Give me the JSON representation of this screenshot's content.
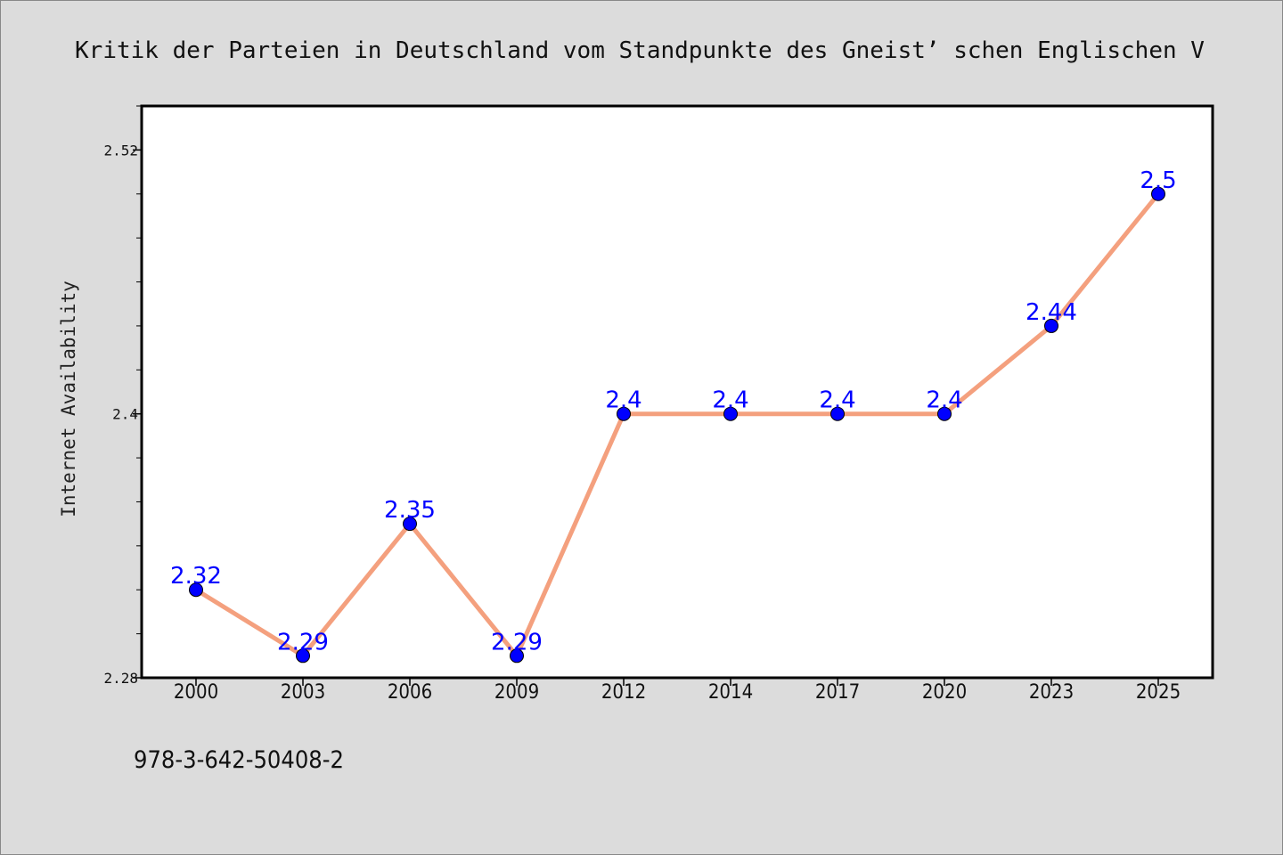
{
  "chart_data": {
    "type": "line",
    "title": "Kritik der Parteien in Deutschland vom Standpunkte des Gneist’ schen Englischen V",
    "ylabel": "Internet Availability",
    "xlabel": "",
    "categories": [
      "2000",
      "2003",
      "2006",
      "2009",
      "2012",
      "2014",
      "2017",
      "2020",
      "2023",
      "2025"
    ],
    "series": [
      {
        "values": [
          2.32,
          2.29,
          2.35,
          2.29,
          2.4,
          2.4,
          2.4,
          2.4,
          2.44,
          2.5
        ],
        "data_labels": [
          "2.32",
          "2.29",
          "2.35",
          "2.29",
          "2.4",
          "2.4",
          "2.4",
          "2.4",
          "2.44",
          "2.5"
        ],
        "line_color": "#f4a07e",
        "marker_color": "#0000ff"
      }
    ],
    "ylim": [
      2.28,
      2.54
    ],
    "yticks": [
      2.28,
      2.4,
      2.52
    ],
    "ytick_labels": [
      "2.28",
      "2.4",
      "2.52"
    ],
    "grid": false,
    "legend": "none"
  },
  "footer_text": "978-3-642-50408-2",
  "colors": {
    "background": "#dcdcdc",
    "plot_background": "#ffffff",
    "axis": "#000000"
  }
}
